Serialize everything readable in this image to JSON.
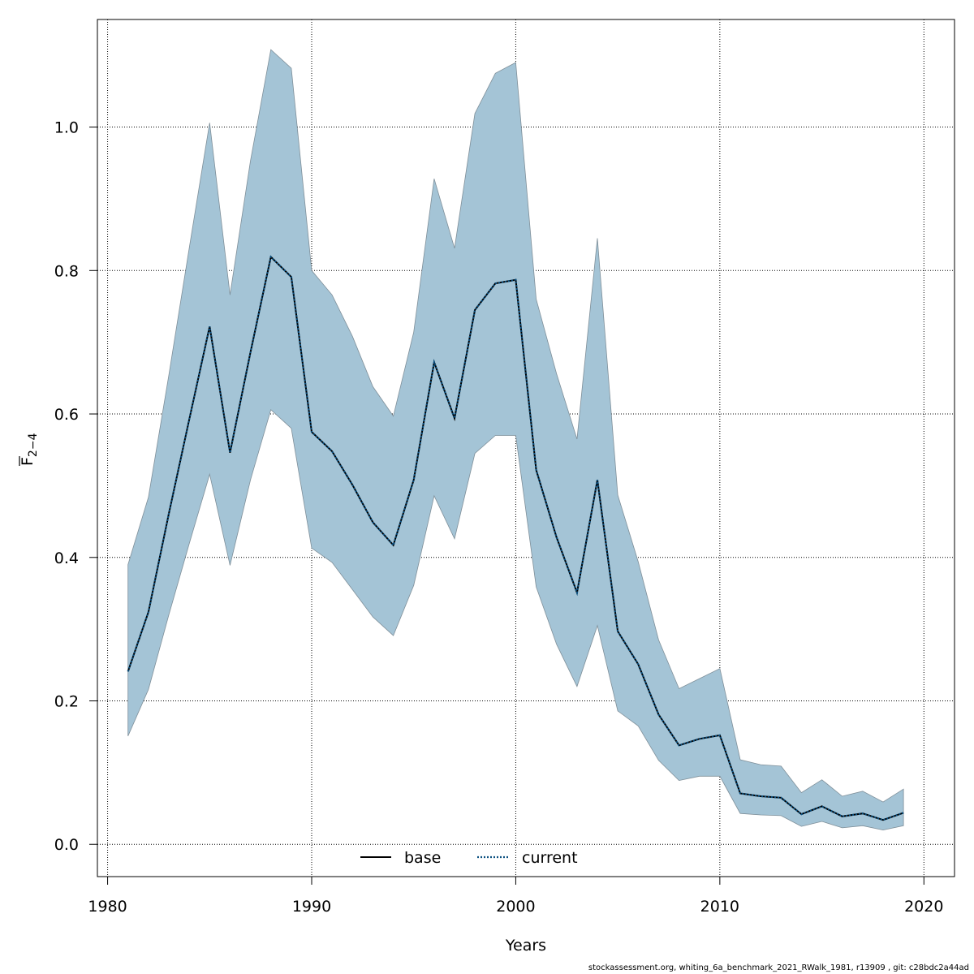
{
  "chart_data": {
    "type": "line",
    "xlabel": "Years",
    "ylabel_main": "F",
    "ylabel_sub": "2−4",
    "xlim": [
      1979.5,
      2021.5
    ],
    "ylim": [
      -0.045,
      1.15
    ],
    "x_ticks": [
      1980,
      1990,
      2000,
      2010,
      2020
    ],
    "y_ticks": [
      0.0,
      0.2,
      0.4,
      0.6,
      0.8,
      1.0
    ],
    "y_tick_labels": [
      "0.0",
      "0.2",
      "0.4",
      "0.6",
      "0.8",
      "1.0"
    ],
    "grid": true,
    "legend_position": "bottom-center",
    "colors": {
      "band": "#a4c4d6",
      "band_edge": "#7f8f99",
      "current": "#0b5080",
      "base": "#000000",
      "grid": "#000000"
    },
    "x": [
      1981,
      1982,
      1983,
      1984,
      1985,
      1986,
      1987,
      1988,
      1989,
      1990,
      1991,
      1992,
      1993,
      1994,
      1995,
      1996,
      1997,
      1998,
      1999,
      2000,
      2001,
      2002,
      2003,
      2004,
      2005,
      2006,
      2007,
      2008,
      2009,
      2010,
      2011,
      2012,
      2013,
      2014,
      2015,
      2016,
      2017,
      2018,
      2019
    ],
    "series": [
      {
        "name": "base",
        "style": "solid",
        "values": [
          0.241,
          0.324,
          0.461,
          0.592,
          0.722,
          0.546,
          0.686,
          0.819,
          0.791,
          0.575,
          0.548,
          0.501,
          0.449,
          0.417,
          0.508,
          0.672,
          0.594,
          0.745,
          0.782,
          0.787,
          0.522,
          0.428,
          0.351,
          0.508,
          0.297,
          0.251,
          0.181,
          0.138,
          0.147,
          0.152,
          0.071,
          0.067,
          0.065,
          0.042,
          0.053,
          0.039,
          0.043,
          0.034,
          0.044
        ]
      },
      {
        "name": "current",
        "style": "dotted",
        "values": [
          0.241,
          0.324,
          0.461,
          0.592,
          0.722,
          0.546,
          0.686,
          0.819,
          0.791,
          0.575,
          0.548,
          0.501,
          0.449,
          0.417,
          0.508,
          0.672,
          0.594,
          0.745,
          0.782,
          0.787,
          0.522,
          0.428,
          0.351,
          0.508,
          0.297,
          0.251,
          0.181,
          0.138,
          0.147,
          0.152,
          0.071,
          0.067,
          0.065,
          0.042,
          0.053,
          0.039,
          0.043,
          0.034,
          0.044
        ]
      }
    ],
    "band": {
      "upper": [
        0.39,
        0.484,
        0.654,
        0.831,
        1.006,
        0.766,
        0.953,
        1.108,
        1.082,
        0.8,
        0.766,
        0.708,
        0.638,
        0.597,
        0.714,
        0.928,
        0.831,
        1.019,
        1.075,
        1.09,
        0.76,
        0.656,
        0.565,
        0.845,
        0.487,
        0.394,
        0.285,
        0.217,
        0.231,
        0.245,
        0.118,
        0.111,
        0.109,
        0.072,
        0.09,
        0.067,
        0.074,
        0.059,
        0.077
      ],
      "lower": [
        0.151,
        0.216,
        0.32,
        0.419,
        0.516,
        0.389,
        0.508,
        0.606,
        0.58,
        0.413,
        0.393,
        0.355,
        0.317,
        0.291,
        0.361,
        0.486,
        0.426,
        0.545,
        0.57,
        0.57,
        0.359,
        0.279,
        0.22,
        0.305,
        0.186,
        0.165,
        0.117,
        0.089,
        0.095,
        0.095,
        0.043,
        0.041,
        0.04,
        0.025,
        0.032,
        0.023,
        0.026,
        0.02,
        0.026
      ]
    }
  },
  "footnote": "stockassessment.org, whiting_6a_benchmark_2021_RWalk_1981, r13909 , git: c28bdc2a44ad"
}
